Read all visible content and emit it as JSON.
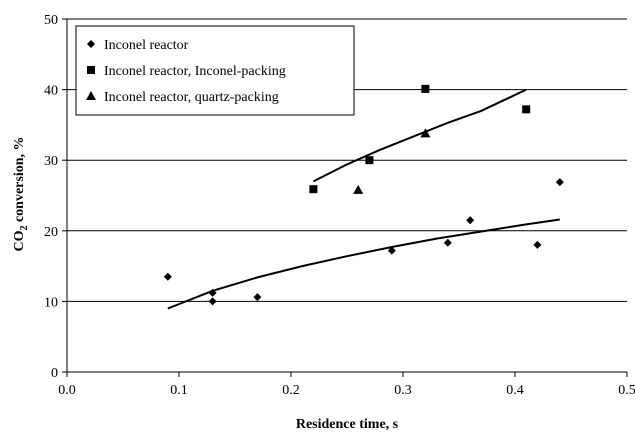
{
  "chart_data": {
    "type": "scatter",
    "title": "",
    "xlabel": "Residence time, s",
    "ylabel": {
      "prefix": "CO",
      "subscript": "2",
      "suffix": " conversion, %"
    },
    "xlim": [
      0,
      0.5
    ],
    "ylim": [
      0,
      50
    ],
    "x_ticks": [
      0.0,
      0.1,
      0.2,
      0.3,
      0.4,
      0.5
    ],
    "x_tick_labels": [
      "0.0",
      "0.1",
      "0.2",
      "0.3",
      "0.4",
      "0.5"
    ],
    "y_ticks": [
      0,
      10,
      20,
      30,
      40,
      50
    ],
    "y_tick_labels": [
      "0",
      "10",
      "20",
      "30",
      "40",
      "50"
    ],
    "grid": "horizontal",
    "legend_position": "top-left",
    "series": [
      {
        "name": "Inconel reactor",
        "marker": "diamond",
        "points": [
          {
            "x": 0.09,
            "y": 13.5
          },
          {
            "x": 0.13,
            "y": 11.2
          },
          {
            "x": 0.13,
            "y": 10.0
          },
          {
            "x": 0.17,
            "y": 10.6
          },
          {
            "x": 0.29,
            "y": 17.2
          },
          {
            "x": 0.34,
            "y": 18.3
          },
          {
            "x": 0.36,
            "y": 21.5
          },
          {
            "x": 0.42,
            "y": 18.0
          },
          {
            "x": 0.44,
            "y": 26.9
          }
        ]
      },
      {
        "name": "Inconel reactor, Inconel-packing",
        "marker": "square",
        "points": [
          {
            "x": 0.22,
            "y": 25.9
          },
          {
            "x": 0.27,
            "y": 30.0
          },
          {
            "x": 0.32,
            "y": 40.1
          },
          {
            "x": 0.41,
            "y": 37.2
          }
        ]
      },
      {
        "name": "Inconel reactor, quartz-packing",
        "marker": "triangle",
        "points": [
          {
            "x": 0.26,
            "y": 25.8
          },
          {
            "x": 0.32,
            "y": 33.8
          }
        ]
      }
    ],
    "trend_lines": [
      {
        "points": [
          {
            "x": 0.09,
            "y": 9.0
          },
          {
            "x": 0.13,
            "y": 11.5
          },
          {
            "x": 0.17,
            "y": 13.4
          },
          {
            "x": 0.21,
            "y": 15.0
          },
          {
            "x": 0.25,
            "y": 16.4
          },
          {
            "x": 0.29,
            "y": 17.7
          },
          {
            "x": 0.33,
            "y": 18.9
          },
          {
            "x": 0.37,
            "y": 19.9
          },
          {
            "x": 0.41,
            "y": 20.9
          },
          {
            "x": 0.44,
            "y": 21.6
          }
        ]
      },
      {
        "points": [
          {
            "x": 0.22,
            "y": 27.0
          },
          {
            "x": 0.25,
            "y": 29.4
          },
          {
            "x": 0.28,
            "y": 31.5
          },
          {
            "x": 0.31,
            "y": 33.4
          },
          {
            "x": 0.34,
            "y": 35.3
          },
          {
            "x": 0.37,
            "y": 37.0
          },
          {
            "x": 0.41,
            "y": 40.0
          }
        ]
      }
    ]
  }
}
